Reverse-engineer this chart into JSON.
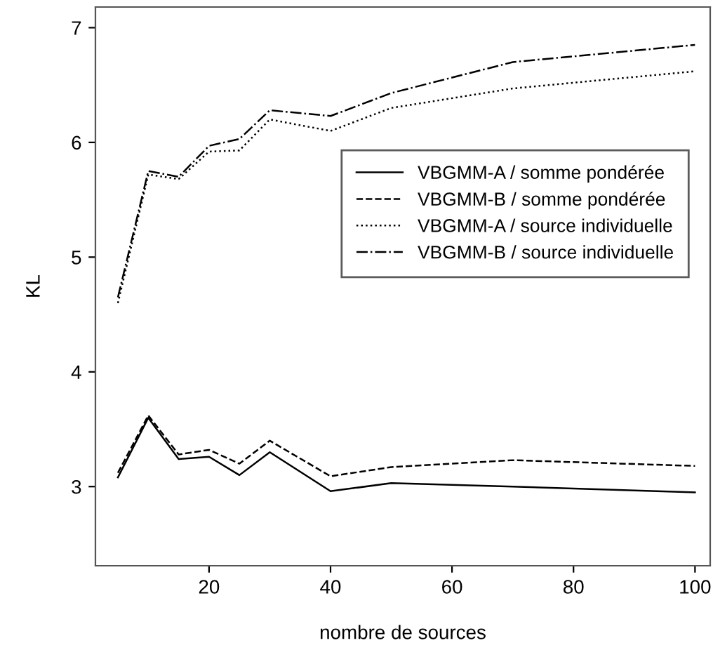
{
  "chart_data": {
    "type": "line",
    "xlabel": "nombre de sources",
    "ylabel": "KL",
    "x": [
      5,
      10,
      15,
      20,
      25,
      30,
      40,
      50,
      70,
      100
    ],
    "series": [
      {
        "name": "VBGMM-A / somme pondérée",
        "color": "#000000",
        "line_style": "solid",
        "values": [
          3.08,
          3.6,
          3.24,
          3.26,
          3.1,
          3.3,
          2.96,
          3.03,
          3.0,
          2.95
        ]
      },
      {
        "name": "VBGMM-B / somme pondérée",
        "color": "#000000",
        "line_style": "dashed",
        "values": [
          3.12,
          3.62,
          3.28,
          3.32,
          3.2,
          3.4,
          3.09,
          3.17,
          3.23,
          3.18
        ]
      },
      {
        "name": "VBGMM-A / source individuelle",
        "color": "#000000",
        "line_style": "dotted",
        "values": [
          4.6,
          5.72,
          5.68,
          5.92,
          5.93,
          6.2,
          6.1,
          6.3,
          6.47,
          6.62
        ]
      },
      {
        "name": "VBGMM-B / source individuelle",
        "color": "#000000",
        "line_style": "dashdot",
        "values": [
          4.65,
          5.75,
          5.7,
          5.97,
          6.03,
          6.28,
          6.23,
          6.43,
          6.7,
          6.85
        ]
      }
    ],
    "xlim": [
      1.3,
      102.5
    ],
    "ylim": [
      2.31,
      7.18
    ],
    "xticks": [
      20,
      40,
      60,
      80,
      100
    ],
    "yticks": [
      3,
      4,
      5,
      6,
      7
    ],
    "grid": false,
    "legend": "right"
  }
}
